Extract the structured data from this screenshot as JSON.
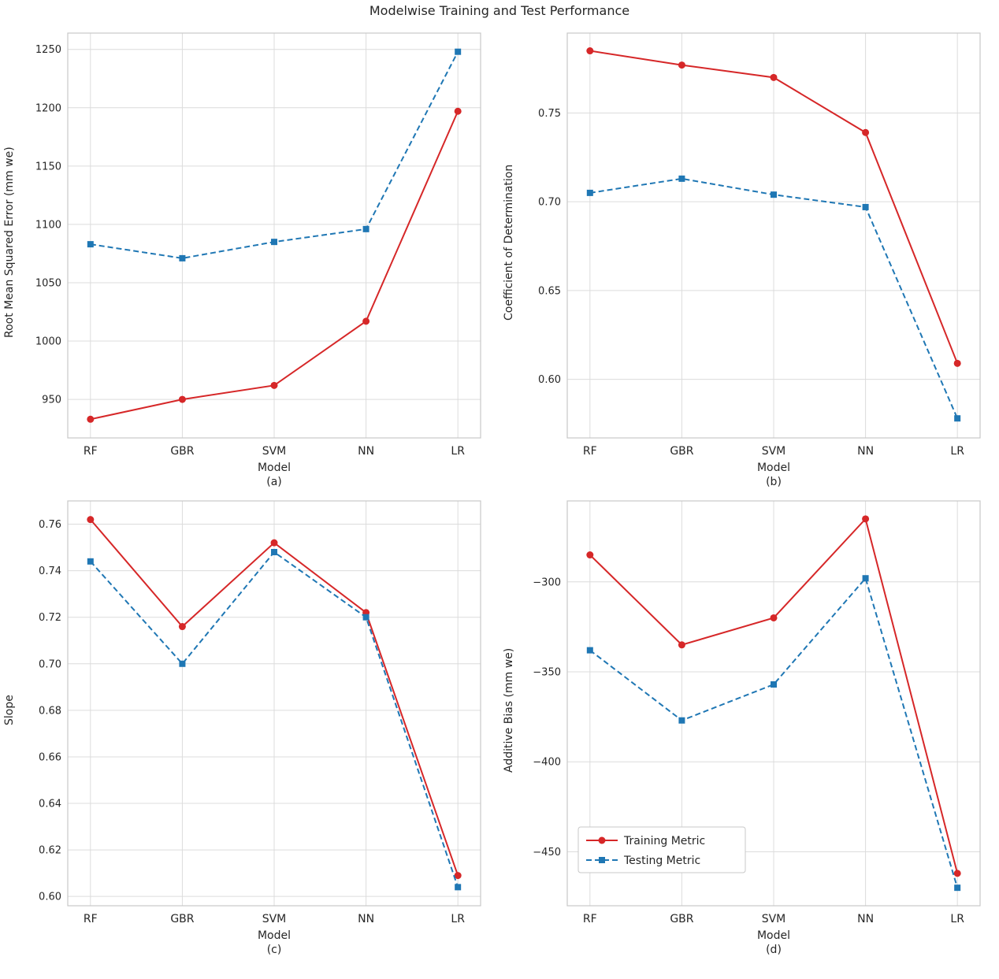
{
  "title": "Modelwise Training and Test Performance",
  "colors": {
    "training": "#d62728",
    "testing": "#1f77b4",
    "grid": "#dcdcdc",
    "spine": "#c8c8c8",
    "text": "#262626"
  },
  "legend": {
    "items": [
      {
        "label": "Training Metric"
      },
      {
        "label": "Testing Metric"
      }
    ]
  },
  "chart_data": [
    {
      "type": "line",
      "caption": "(a)",
      "title": "",
      "xlabel": "Model",
      "ylabel": "Root Mean Squared Error   (mm we)",
      "categories": [
        "RF",
        "GBR",
        "SVM",
        "NN",
        "LR"
      ],
      "series": [
        {
          "name": "Training Metric",
          "values": [
            933,
            950,
            962,
            1017,
            1197
          ],
          "color": "#d62728",
          "dash": "solid",
          "marker": "circle"
        },
        {
          "name": "Testing Metric",
          "values": [
            1083,
            1071,
            1085,
            1096,
            1248
          ],
          "color": "#1f77b4",
          "dash": "dashed",
          "marker": "square"
        }
      ],
      "ylim": [
        917,
        1264
      ],
      "ytick_values": [
        950,
        1000,
        1050,
        1100,
        1150,
        1200,
        1250
      ],
      "ytick_labels": [
        "950",
        "1000",
        "1050",
        "1100",
        "1150",
        "1200",
        "1250"
      ],
      "grid": true,
      "legend": false
    },
    {
      "type": "line",
      "caption": "(b)",
      "title": "",
      "xlabel": "Model",
      "ylabel": "Coefficient of Determination",
      "categories": [
        "RF",
        "GBR",
        "SVM",
        "NN",
        "LR"
      ],
      "series": [
        {
          "name": "Training Metric",
          "values": [
            0.785,
            0.777,
            0.77,
            0.739,
            0.609
          ],
          "color": "#d62728",
          "dash": "solid",
          "marker": "circle"
        },
        {
          "name": "Testing Metric",
          "values": [
            0.705,
            0.713,
            0.704,
            0.697,
            0.578
          ],
          "color": "#1f77b4",
          "dash": "dashed",
          "marker": "square"
        }
      ],
      "ylim": [
        0.567,
        0.795
      ],
      "ytick_values": [
        0.6,
        0.65,
        0.7,
        0.75
      ],
      "ytick_labels": [
        "0.60",
        "0.65",
        "0.70",
        "0.75"
      ],
      "grid": true,
      "legend": false
    },
    {
      "type": "line",
      "caption": "(c)",
      "title": "",
      "xlabel": "Model",
      "ylabel": "Slope",
      "categories": [
        "RF",
        "GBR",
        "SVM",
        "NN",
        "LR"
      ],
      "series": [
        {
          "name": "Training Metric",
          "values": [
            0.762,
            0.716,
            0.752,
            0.722,
            0.609
          ],
          "color": "#d62728",
          "dash": "solid",
          "marker": "circle"
        },
        {
          "name": "Testing Metric",
          "values": [
            0.744,
            0.7,
            0.748,
            0.72,
            0.604
          ],
          "color": "#1f77b4",
          "dash": "dashed",
          "marker": "square"
        }
      ],
      "ylim": [
        0.596,
        0.77
      ],
      "ytick_values": [
        0.6,
        0.62,
        0.64,
        0.66,
        0.68,
        0.7,
        0.72,
        0.74,
        0.76
      ],
      "ytick_labels": [
        "0.60",
        "0.62",
        "0.64",
        "0.66",
        "0.68",
        "0.70",
        "0.72",
        "0.74",
        "0.76"
      ],
      "grid": true,
      "legend": false
    },
    {
      "type": "line",
      "caption": "(d)",
      "title": "",
      "xlabel": "Model",
      "ylabel": "Additive Bias   (mm we)",
      "categories": [
        "RF",
        "GBR",
        "SVM",
        "NN",
        "LR"
      ],
      "series": [
        {
          "name": "Training Metric",
          "values": [
            -285,
            -335,
            -320,
            -265,
            -462
          ],
          "color": "#d62728",
          "dash": "solid",
          "marker": "circle"
        },
        {
          "name": "Testing Metric",
          "values": [
            -338,
            -377,
            -357,
            -298,
            -470
          ],
          "color": "#1f77b4",
          "dash": "dashed",
          "marker": "square"
        }
      ],
      "ylim": [
        -480,
        -255
      ],
      "ytick_values": [
        -450,
        -400,
        -350,
        -300
      ],
      "ytick_labels": [
        "−450",
        "−400",
        "−350",
        "−300"
      ],
      "grid": true,
      "legend": true
    }
  ]
}
